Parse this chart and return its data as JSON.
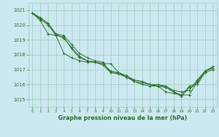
{
  "title": "Graphe pression niveau de la mer (hPa)",
  "bg_color": "#cce8f0",
  "grid_color": "#99ccbb",
  "line_color": "#2d6e2d",
  "ylim": [
    1014.5,
    1021.5
  ],
  "xlim": [
    -0.5,
    23.5
  ],
  "yticks": [
    1015,
    1016,
    1017,
    1018,
    1019,
    1020,
    1021
  ],
  "xticks": [
    0,
    1,
    2,
    3,
    4,
    5,
    6,
    7,
    8,
    9,
    10,
    11,
    12,
    13,
    14,
    15,
    16,
    17,
    18,
    19,
    20,
    21,
    22,
    23
  ],
  "series": [
    [
      1020.8,
      1020.5,
      1020.1,
      1019.4,
      1019.3,
      1018.7,
      1018.1,
      1017.8,
      1017.6,
      1017.5,
      1016.8,
      1016.7,
      1016.5,
      1016.3,
      1016.2,
      1016.0,
      1016.0,
      1015.9,
      1015.6,
      1015.5,
      1015.6,
      1016.3,
      1016.9,
      1017.2
    ],
    [
      1020.8,
      1020.5,
      1020.1,
      1019.4,
      1019.1,
      1018.5,
      1017.9,
      1017.6,
      1017.5,
      1017.3,
      1016.8,
      1016.8,
      1016.6,
      1016.3,
      1016.2,
      1016.0,
      1015.9,
      1015.9,
      1015.5,
      1015.3,
      1015.9,
      1016.1,
      1016.9,
      1017.1
    ],
    [
      1020.8,
      1020.4,
      1020.0,
      1019.3,
      1019.2,
      1018.4,
      1017.8,
      1017.6,
      1017.5,
      1017.4,
      1016.9,
      1016.8,
      1016.5,
      1016.2,
      1016.0,
      1015.9,
      1015.9,
      1015.8,
      1015.5,
      1015.2,
      1015.8,
      1016.0,
      1016.8,
      1017.0
    ],
    [
      1020.8,
      1020.3,
      1019.4,
      1019.3,
      1018.1,
      1017.8,
      1017.6,
      1017.5,
      1017.5,
      1017.4,
      1017.4,
      1016.8,
      1016.5,
      1016.2,
      1016.1,
      1016.0,
      1015.9,
      1015.5,
      1015.4,
      1015.3,
      1015.3,
      1016.2,
      1016.9,
      1017.2
    ]
  ]
}
